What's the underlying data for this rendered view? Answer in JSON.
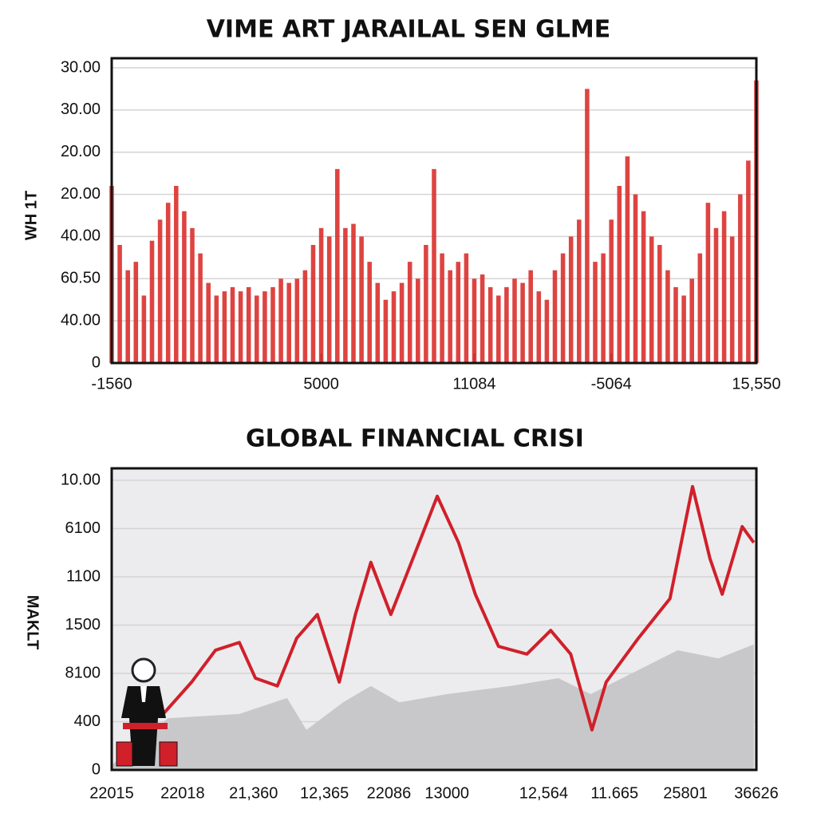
{
  "chart_data": [
    {
      "type": "bar",
      "title": "VIME ART JARAILAL SEN GLME",
      "ylabel": "WH 1T",
      "color": "#d9302c",
      "grid": true,
      "x": [
        0,
        1,
        2,
        3,
        4,
        5,
        6,
        7,
        8,
        9,
        10,
        11,
        12,
        13,
        14,
        15,
        16,
        17,
        18,
        19,
        20,
        21,
        22,
        23,
        24,
        25,
        26,
        27,
        28,
        29,
        30,
        31,
        32,
        33,
        34,
        35,
        36,
        37,
        38,
        39,
        40,
        41,
        42,
        43,
        44,
        45,
        46,
        47,
        48,
        49,
        50,
        51,
        52,
        53,
        54,
        55,
        56,
        57,
        58,
        59,
        60,
        61,
        62,
        63,
        64,
        65,
        66,
        67,
        68,
        69,
        70,
        71,
        72,
        73,
        74,
        75,
        76,
        77,
        78,
        79,
        80
      ],
      "values": [
        4.2,
        2.8,
        2.2,
        2.4,
        1.6,
        2.9,
        3.4,
        3.8,
        4.2,
        3.6,
        3.2,
        2.6,
        1.9,
        1.6,
        1.7,
        1.8,
        1.7,
        1.8,
        1.6,
        1.7,
        1.8,
        2.0,
        1.9,
        2.0,
        2.2,
        2.8,
        3.2,
        3.0,
        4.6,
        3.2,
        3.3,
        3.0,
        2.4,
        1.9,
        1.5,
        1.7,
        1.9,
        2.4,
        2.0,
        2.8,
        4.6,
        2.6,
        2.2,
        2.4,
        2.6,
        2.0,
        2.1,
        1.8,
        1.6,
        1.8,
        2.0,
        1.9,
        2.2,
        1.7,
        1.5,
        2.2,
        2.6,
        3.0,
        3.4,
        6.5,
        2.4,
        2.6,
        3.4,
        4.2,
        4.9,
        4.0,
        3.6,
        3.0,
        2.8,
        2.2,
        1.8,
        1.6,
        2.0,
        2.6,
        3.8,
        3.2,
        3.6,
        3.0,
        4.0,
        4.8,
        6.7
      ],
      "xlim": [
        0,
        80
      ],
      "xticks": [
        {
          "value": 0,
          "label": "-1560"
        },
        {
          "value": 26,
          "label": "5000"
        },
        {
          "value": 45,
          "label": "11084"
        },
        {
          "value": 62,
          "label": "-5064"
        },
        {
          "value": 80,
          "label": "15,550"
        }
      ],
      "ylim": [
        0,
        7
      ],
      "yticks": [
        0,
        {
          "value": 1,
          "label": "40.00"
        },
        {
          "value": 2,
          "label": "60.50"
        },
        {
          "value": 3,
          "label": "40.00"
        },
        {
          "value": 4,
          "label": "20.00"
        },
        {
          "value": 5,
          "label": "20.00"
        },
        {
          "value": 6,
          "label": "30.00"
        },
        {
          "value": 7,
          "label": "30.00"
        }
      ]
    },
    {
      "type": "line",
      "title": "GLOBAL FINANCIAL CRISI",
      "ylabel": "MAKLT",
      "grid": true,
      "series": [
        {
          "color": "#c8c8ca",
          "area": true,
          "x": [
            0,
            8.7,
            19.8,
            27.2,
            30.2,
            35.9,
            40.2,
            44.6,
            52,
            61.9,
            69.3,
            74.3,
            81.7,
            87.8,
            94.1,
            99.6
          ],
          "values": [
            0.1,
            1.07,
            1.16,
            1.49,
            0.83,
            1.4,
            1.74,
            1.4,
            1.57,
            1.74,
            1.9,
            1.57,
            2.07,
            2.48,
            2.31,
            2.6
          ]
        },
        {
          "color": "#d0202a",
          "area": false,
          "x": [
            8,
            12.4,
            16.1,
            19.8,
            22.3,
            25.7,
            28.7,
            31.9,
            35.3,
            37.8,
            40.2,
            43.3,
            47.7,
            50.5,
            53.8,
            56.4,
            60,
            64.4,
            68.1,
            71.2,
            74.5,
            76.7,
            81.7,
            86.6,
            90.1,
            92.8,
            94.7,
            97.8,
            99.6
          ],
          "values": [
            1.16,
            1.82,
            2.48,
            2.64,
            1.9,
            1.74,
            2.73,
            3.22,
            1.82,
            3.22,
            4.3,
            3.22,
            4.71,
            5.67,
            4.71,
            3.64,
            2.56,
            2.4,
            2.89,
            2.4,
            0.83,
            1.82,
            2.73,
            3.55,
            5.87,
            4.38,
            3.64,
            5.04,
            4.71
          ]
        }
      ],
      "xlim": [
        0,
        100
      ],
      "xticks": [
        {
          "value": 0,
          "label": "22015"
        },
        {
          "value": 11,
          "label": "22018"
        },
        {
          "value": 22,
          "label": "21,360"
        },
        {
          "value": 33,
          "label": "12,365"
        },
        {
          "value": 43,
          "label": "22086"
        },
        {
          "value": 52,
          "label": "13000"
        },
        {
          "value": 67,
          "label": "12,564"
        },
        {
          "value": 78,
          "label": "11.665"
        },
        {
          "value": 89,
          "label": "25801"
        },
        {
          "value": 100,
          "label": "36626"
        }
      ],
      "ylim": [
        0,
        6
      ],
      "yticks": [
        0,
        {
          "value": 1,
          "label": "400"
        },
        {
          "value": 2,
          "label": "8100"
        },
        {
          "value": 3,
          "label": "1500"
        },
        {
          "value": 4,
          "label": "1100"
        },
        {
          "value": 5,
          "label": "6100"
        },
        {
          "value": 6,
          "label": "10.00"
        }
      ]
    }
  ]
}
